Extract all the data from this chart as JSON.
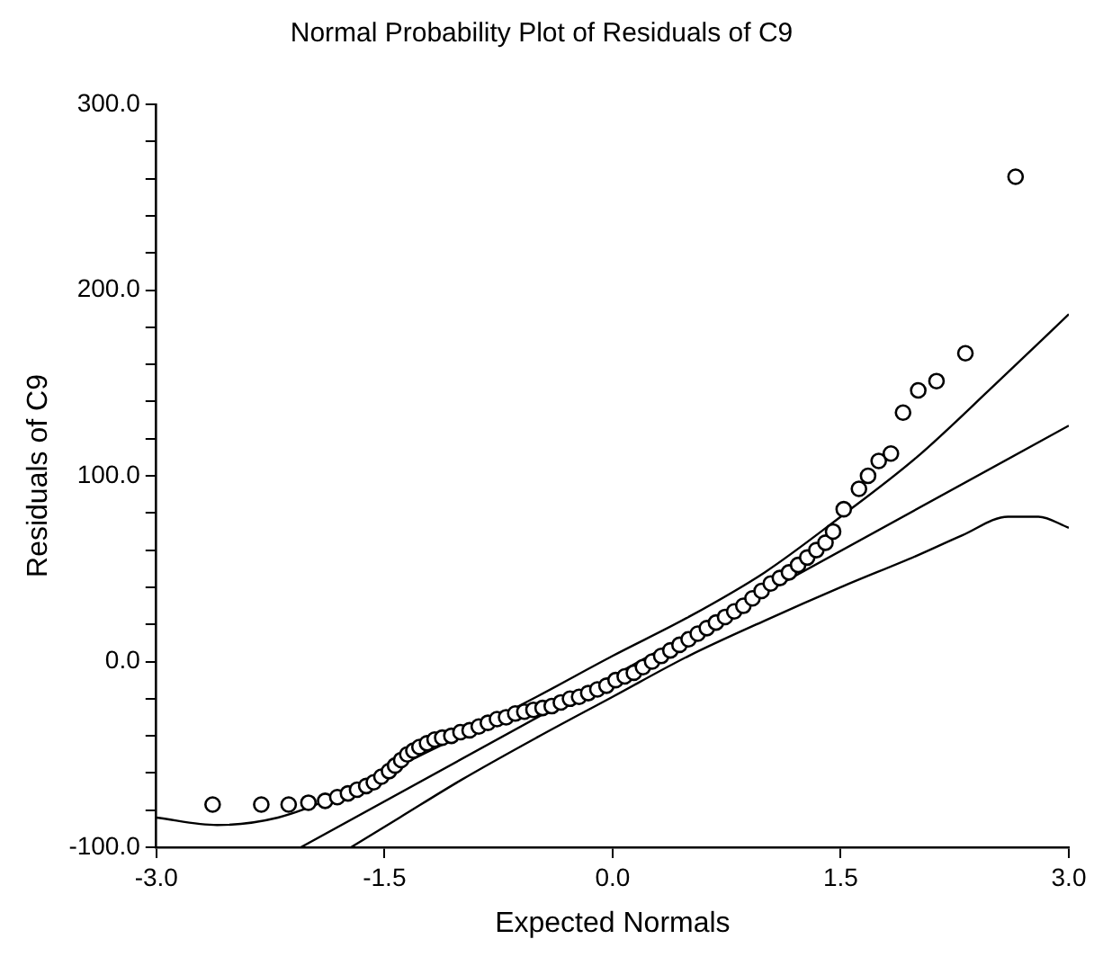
{
  "chart_data": {
    "type": "scatter",
    "title": "Normal Probability Plot of Residuals of C9",
    "xlabel": "Expected Normals",
    "ylabel": "Residuals of C9",
    "xlim": [
      -3,
      3
    ],
    "xticks": [
      {
        "value": -3,
        "label": "-3.0"
      },
      {
        "value": -1.5,
        "label": "-1.5"
      },
      {
        "value": 0,
        "label": "0.0"
      },
      {
        "value": 1.5,
        "label": "1.5"
      },
      {
        "value": 3,
        "label": "3.0"
      }
    ],
    "ylim": [
      -100,
      300
    ],
    "yticks": [
      {
        "value": -100,
        "label": "-100.0"
      },
      {
        "value": -80,
        "label": null
      },
      {
        "value": -60,
        "label": null
      },
      {
        "value": -40,
        "label": null
      },
      {
        "value": -20,
        "label": null
      },
      {
        "value": 0,
        "label": "0.0"
      },
      {
        "value": 20,
        "label": null
      },
      {
        "value": 40,
        "label": null
      },
      {
        "value": 60,
        "label": null
      },
      {
        "value": 80,
        "label": null
      },
      {
        "value": 100,
        "label": "100.0"
      },
      {
        "value": 120,
        "label": null
      },
      {
        "value": 140,
        "label": null
      },
      {
        "value": 160,
        "label": null
      },
      {
        "value": 180,
        "label": null
      },
      {
        "value": 200,
        "label": "200.0"
      },
      {
        "value": 220,
        "label": null
      },
      {
        "value": 240,
        "label": null
      },
      {
        "value": 260,
        "label": null
      },
      {
        "value": 280,
        "label": null
      },
      {
        "value": 300,
        "label": "300.0"
      }
    ],
    "grid": false,
    "legend": false,
    "series": [
      {
        "marker": "circle",
        "color": "#000000",
        "x": [
          -2.63,
          -2.31,
          -2.13,
          -2.0,
          -1.89,
          -1.81,
          -1.74,
          -1.68,
          -1.62,
          -1.57,
          -1.52,
          -1.47,
          -1.43,
          -1.39,
          -1.35,
          -1.31,
          -1.27,
          -1.22,
          -1.17,
          -1.12,
          -1.06,
          -1.0,
          -0.94,
          -0.88,
          -0.82,
          -0.76,
          -0.7,
          -0.64,
          -0.58,
          -0.52,
          -0.46,
          -0.4,
          -0.34,
          -0.28,
          -0.22,
          -0.16,
          -0.1,
          -0.04,
          0.02,
          0.08,
          0.14,
          0.2,
          0.26,
          0.32,
          0.38,
          0.44,
          0.5,
          0.56,
          0.62,
          0.68,
          0.74,
          0.8,
          0.86,
          0.92,
          0.98,
          1.04,
          1.1,
          1.16,
          1.22,
          1.28,
          1.34,
          1.4,
          1.45,
          1.52,
          1.62,
          1.68,
          1.75,
          1.83,
          1.91,
          2.01,
          2.13,
          2.32,
          2.65
        ],
        "values": [
          -77,
          -77,
          -77,
          -76,
          -75,
          -73,
          -71,
          -69,
          -67,
          -65,
          -62,
          -59,
          -56,
          -53,
          -50,
          -48,
          -46,
          -44,
          -42,
          -41,
          -40,
          -38,
          -37,
          -35,
          -33,
          -31,
          -30,
          -28,
          -27,
          -26,
          -25,
          -24,
          -22,
          -20,
          -19,
          -17,
          -15,
          -13,
          -10,
          -8,
          -6,
          -3,
          0,
          3,
          6,
          9,
          12,
          15,
          18,
          21,
          24,
          27,
          30,
          34,
          38,
          42,
          45,
          48,
          52,
          56,
          60,
          64,
          70,
          82,
          93,
          100,
          108,
          112,
          134,
          146,
          151,
          166,
          261
        ]
      },
      {
        "type": "line",
        "marker": "none",
        "color": "#000000",
        "x": [
          -2.05,
          3
        ],
        "values": [
          -100,
          127
        ]
      },
      {
        "type": "line",
        "marker": "none",
        "color": "#000000",
        "x": [
          -3,
          -2.6,
          -2.2,
          -1.8,
          -1.4,
          -1.0,
          -0.5,
          0,
          0.5,
          1.0,
          1.5,
          2.0,
          2.5,
          3.0
        ],
        "values": [
          -84,
          -88,
          -84,
          -72,
          -56,
          -40,
          -19,
          3,
          24,
          48,
          78,
          110,
          148,
          187
        ]
      },
      {
        "type": "line",
        "marker": "none",
        "color": "#000000",
        "x": [
          -1.72,
          -1.4,
          -1.0,
          -0.5,
          0,
          0.5,
          1.0,
          1.5,
          2.0,
          2.3,
          2.6,
          2.8,
          3.0
        ],
        "values": [
          -100,
          -84,
          -64,
          -41,
          -19,
          3,
          22,
          40,
          57,
          68,
          78,
          78,
          72
        ]
      }
    ]
  }
}
